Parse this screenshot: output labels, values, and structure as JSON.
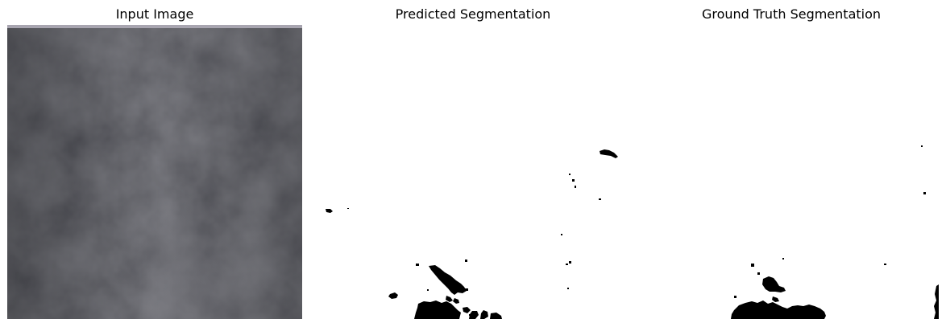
{
  "figure": {
    "panels": [
      {
        "title": "Input Image",
        "content": "image",
        "colors": {
          "base": "#3a3b3f",
          "light": "#5a5b62",
          "dark": "#26272b",
          "top_strip": "#a8a5b0"
        }
      },
      {
        "title": "Predicted Segmentation",
        "content": "mask",
        "colors": {
          "background": "#ffffff",
          "mask": "#000000"
        }
      },
      {
        "title": "Ground Truth Segmentation",
        "content": "mask",
        "colors": {
          "background": "#ffffff",
          "mask": "#000000"
        }
      }
    ]
  }
}
